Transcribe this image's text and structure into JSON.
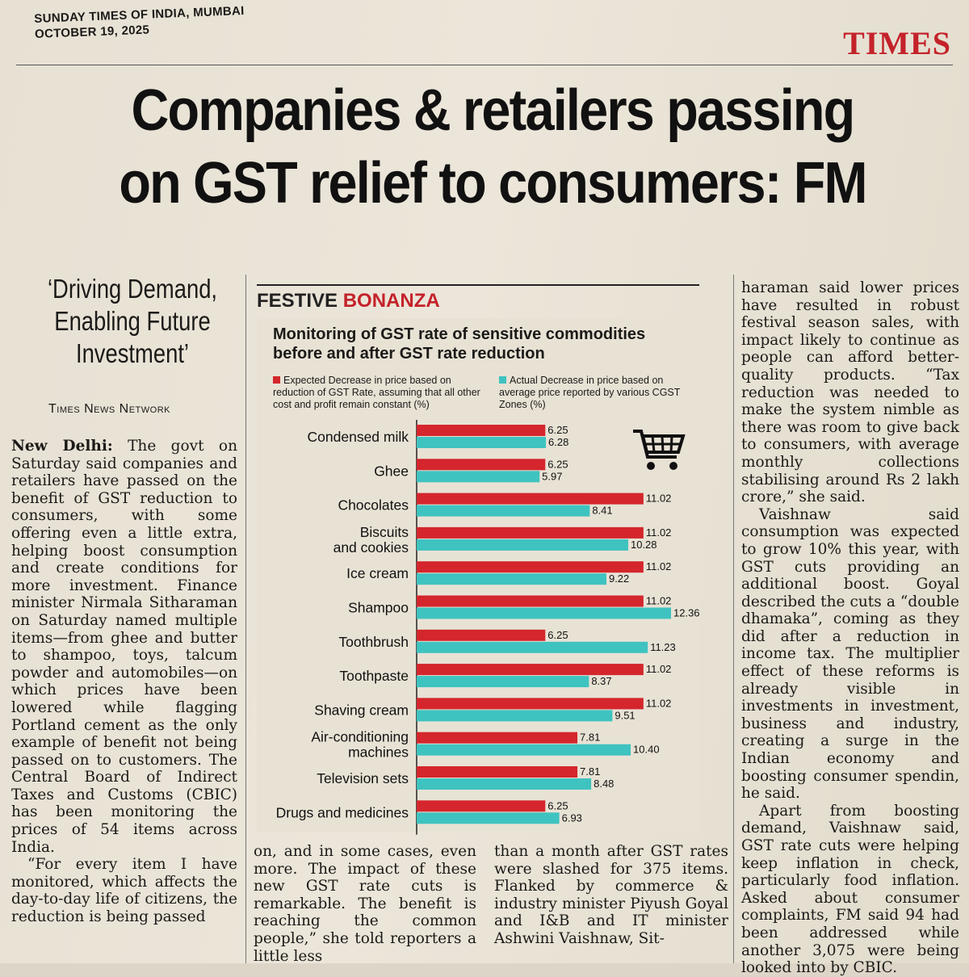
{
  "masthead": {
    "line1": "SUNDAY TIMES OF INDIA, MUMBAI",
    "line2": "OCTOBER 19, 2025"
  },
  "brand": {
    "logo": "TIMES",
    "color": "#c4222a"
  },
  "headline": {
    "line1": "Companies & retailers passing",
    "line2": "on GST relief to consumers: FM"
  },
  "kicker": {
    "line1": "‘Driving Demand,",
    "line2": "Enabling Future",
    "line3": "Investment’"
  },
  "byline": "Times News Network",
  "article": {
    "col1": {
      "lead_dateline": "New Delhi:",
      "p1": " The govt on Saturday said companies and retailers have passed on the benefit of GST reduction to consumers, with some offering even a little extra, helping boost consumption and create conditions for more investment. Finance minister Nirmala Sitharaman on Saturday named multiple items—from ghee and butter to shampoo, toys, talcum powder and automobiles—on which prices have been lowered while flagging Portland cement as the only example of benefit not being passed on to customers. The Central Board of Indirect Taxes and Customs (CBIC) has been monitoring the prices of 54 items across India.",
      "p2": "“For every item I have monitored, which affects the day-to-day life of citizens, the reduction is being passed"
    },
    "col2": "on, and in some cases, even more. The impact of these new GST rate cuts is remarkable. The benefit is reaching the common people,” she told reporters a little less",
    "col3": "than a month after GST rates were slashed for 375 items. Flanked by commerce & industry minister Piyush Goyal and I&B and IT minister Ashwini Vaishnaw, Sit-",
    "col4": {
      "p1": "haraman said lower prices have resulted in robust festival season sales, with impact likely to continue as people can afford better-quality products. “Tax reduction was needed to make the system nimble as there was room to give back to consumers, with average monthly collections stabilising around Rs 2 lakh crore,” she said.",
      "p2": "Vaishnaw said consumption was expected to grow 10% this year, with GST cuts providing an additional boost. Goyal described the cuts a “double dhamaka”, coming as they did after a reduction in income tax. The multiplier effect of these reforms is already visible in investments in investment, business and industry, creating a surge in the Indian economy and boosting consumer spendin, he said.",
      "p3": "Apart from boosting demand, Vaishnaw said, GST rate cuts were helping keep inflation in check, particularly food inflation. Asked about consumer complaints, FM said 94 had been addressed while another 3,075 were being looked into by CBIC."
    }
  },
  "panel": {
    "label1": "FESTIVE",
    "label2": "BONANZA"
  },
  "icon": "shopping-cart-icon",
  "chart_data": {
    "type": "bar",
    "orientation": "horizontal",
    "title": "Monitoring of GST rate of sensitive commodities before and after GST rate reduction",
    "categories": [
      "Condensed milk",
      "Ghee",
      "Chocolates",
      "Biscuits|and cookies",
      "Ice cream",
      "Shampoo",
      "Toothbrush",
      "Toothpaste",
      "Shaving cream",
      "Air-conditioning|machines",
      "Television sets",
      "Drugs and medicines"
    ],
    "series": [
      {
        "name": "Expected Decrease in price based on reduction of GST Rate, assuming that all other cost and profit remain constant (%)",
        "color": "#d4262c",
        "values": [
          6.25,
          6.25,
          11.02,
          11.02,
          11.02,
          11.02,
          6.25,
          11.02,
          11.02,
          7.81,
          7.81,
          6.25
        ],
        "labels": [
          "6.25",
          "6.25",
          "11.02",
          "11.02",
          "11.02",
          "11.02",
          "6.25",
          "11.02",
          "11.02",
          "7.81",
          "7.81",
          "6.25"
        ]
      },
      {
        "name": "Actual Decrease in price based on average price reported by various CGST Zones (%)",
        "color": "#3fc3c0",
        "values": [
          6.28,
          5.97,
          8.41,
          10.28,
          9.22,
          12.36,
          11.23,
          8.37,
          9.51,
          10.4,
          8.48,
          6.93
        ],
        "labels": [
          "6.28",
          "5.97",
          "8.41",
          "10.28",
          "9.22",
          "12.36",
          "11.23",
          "8.37",
          "9.51",
          "10.40",
          "8.48",
          "6.93"
        ]
      }
    ],
    "xlim": [
      0,
      12.36
    ],
    "legend_position": "top"
  }
}
